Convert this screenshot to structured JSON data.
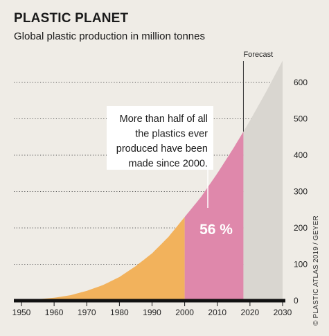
{
  "header": {
    "title": "PLASTIC PLANET",
    "subtitle": "Global plastic production in million tonnes"
  },
  "credit": "© PLASTIC ATLAS 2019 / GEYER",
  "chart_data": {
    "type": "area",
    "title": "PLASTIC PLANET",
    "subtitle": "Global plastic production in million tonnes",
    "xlabel": "",
    "ylabel": "",
    "xlim": [
      1950,
      2030
    ],
    "ylim": [
      0,
      660
    ],
    "x_ticks": [
      1950,
      1960,
      1970,
      1980,
      1990,
      2000,
      2010,
      2020,
      2030
    ],
    "y_ticks": [
      0,
      100,
      200,
      300,
      400,
      500,
      600
    ],
    "grid": "horizontal dotted",
    "y_axis_side": "right",
    "x": [
      1950,
      1955,
      1960,
      1965,
      1970,
      1975,
      1980,
      1985,
      1990,
      1995,
      2000,
      2005,
      2010,
      2015,
      2018,
      2020,
      2025,
      2030
    ],
    "y": [
      2,
      4,
      8,
      15,
      27,
      43,
      65,
      95,
      130,
      175,
      230,
      285,
      350,
      420,
      465,
      495,
      575,
      660
    ],
    "segments": [
      {
        "from": 1950,
        "to": 2000,
        "color": "#f2b25c"
      },
      {
        "from": 2000,
        "to": 2018,
        "color": "#df88ab"
      },
      {
        "from": 2018,
        "to": 2030,
        "color": "#d9d6d0"
      }
    ],
    "forecast_start": 2018,
    "forecast_label": "Forecast",
    "annotation": "More than half of all the plastics ever produced have been made since 2000.",
    "annotation_lines": [
      "More than half of all",
      "the plastics ever",
      "produced have been",
      "made since 2000."
    ],
    "pink_label": "56 %"
  }
}
